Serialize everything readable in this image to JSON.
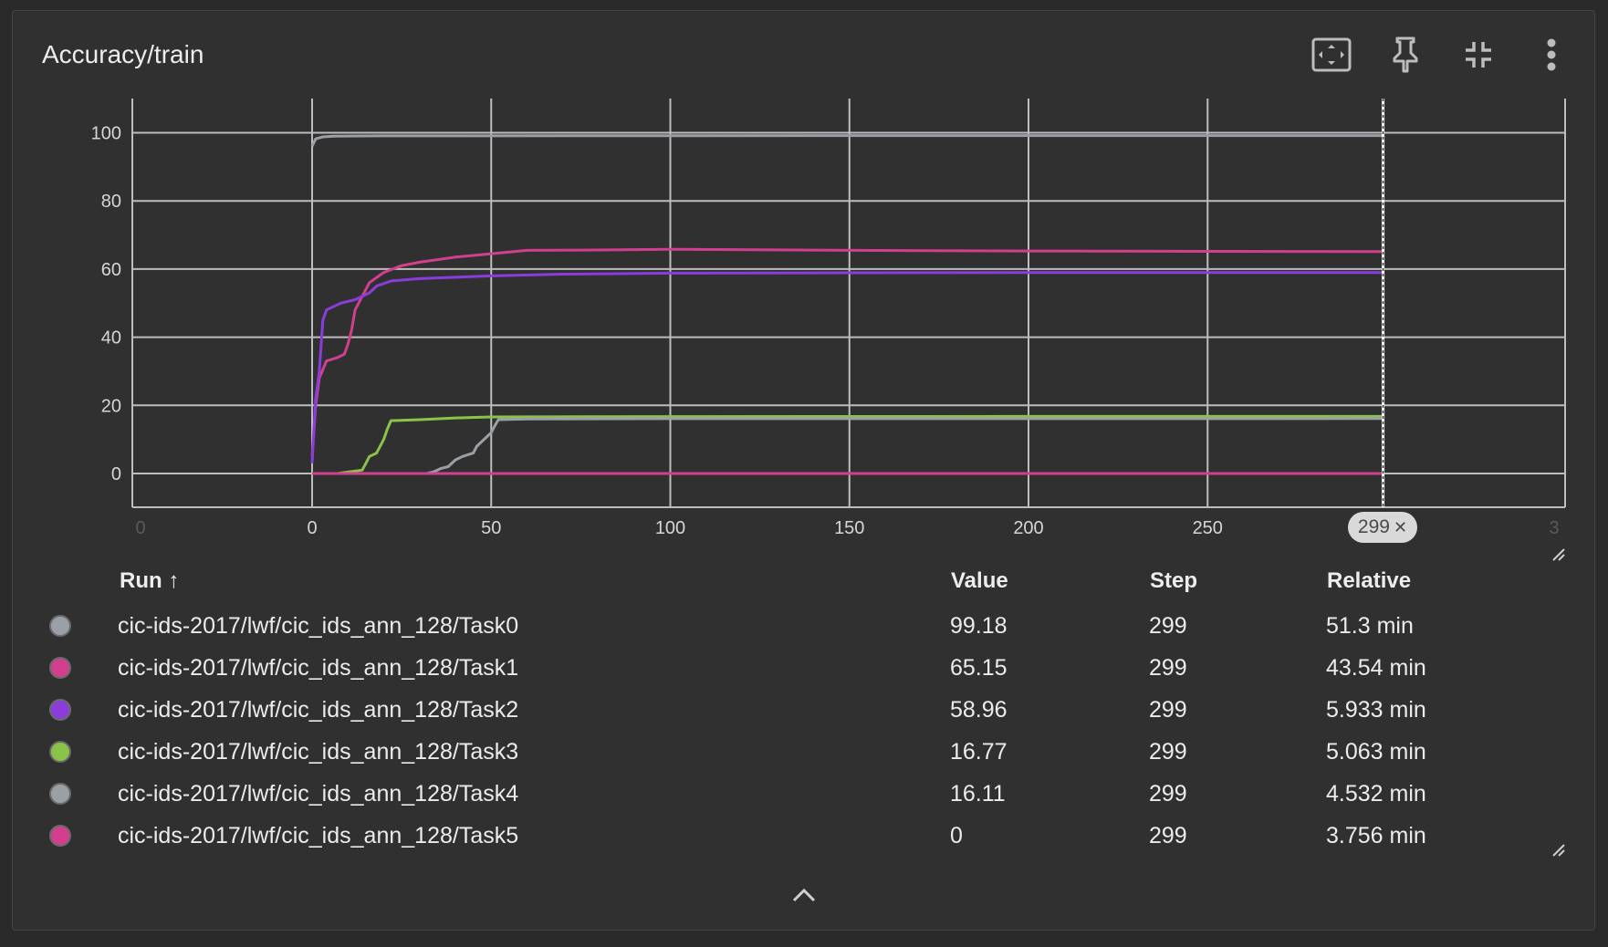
{
  "card": {
    "title": "Accuracy/train"
  },
  "toolbar": {
    "buttons": [
      {
        "name": "fit-domain",
        "icon": "fit-screen-icon"
      },
      {
        "name": "pin",
        "icon": "pin-icon"
      },
      {
        "name": "collapse",
        "icon": "collapse-icon"
      },
      {
        "name": "more",
        "icon": "more-vert-icon"
      }
    ]
  },
  "chart_data": {
    "type": "line",
    "title": "",
    "xlabel": "",
    "ylabel": "",
    "xlim": [
      -50,
      350
    ],
    "ylim": [
      -10,
      110
    ],
    "x_ticks": [
      0,
      50,
      100,
      150,
      200,
      250
    ],
    "x_tick_labels": [
      "0",
      "50",
      "100",
      "150",
      "200",
      "250"
    ],
    "x_edge_labels": [
      "0",
      "3"
    ],
    "y_ticks": [
      0,
      20,
      40,
      60,
      80,
      100
    ],
    "y_tick_labels": [
      "0",
      "20",
      "40",
      "60",
      "80",
      "100"
    ],
    "grid": true,
    "cursor_step": 299,
    "series": [
      {
        "name": "cic-ids-2017/lwf/cic_ids_ann_128/Task0",
        "color": "#9aa0a6",
        "points": [
          [
            0,
            96
          ],
          [
            1,
            98.2
          ],
          [
            3,
            98.8
          ],
          [
            6,
            99
          ],
          [
            20,
            99.1
          ],
          [
            100,
            99.15
          ],
          [
            200,
            99.18
          ],
          [
            299,
            99.18
          ]
        ]
      },
      {
        "name": "cic-ids-2017/lwf/cic_ids_ann_128/Task1",
        "color": "#d33f8f",
        "points": [
          [
            0,
            5
          ],
          [
            1,
            20
          ],
          [
            2,
            28
          ],
          [
            4,
            33
          ],
          [
            7,
            34
          ],
          [
            9,
            35
          ],
          [
            10,
            38
          ],
          [
            11,
            42
          ],
          [
            12,
            48
          ],
          [
            14,
            52
          ],
          [
            16,
            56
          ],
          [
            20,
            59
          ],
          [
            25,
            61
          ],
          [
            30,
            62
          ],
          [
            40,
            63.5
          ],
          [
            50,
            64.5
          ],
          [
            60,
            65.5
          ],
          [
            80,
            65.6
          ],
          [
            100,
            65.8
          ],
          [
            150,
            65.5
          ],
          [
            200,
            65.3
          ],
          [
            250,
            65.2
          ],
          [
            299,
            65.15
          ]
        ]
      },
      {
        "name": "cic-ids-2017/lwf/cic_ids_ann_128/Task2",
        "color": "#8b3ddc",
        "points": [
          [
            0,
            3
          ],
          [
            1,
            22
          ],
          [
            2,
            30
          ],
          [
            3,
            45
          ],
          [
            4,
            48
          ],
          [
            8,
            50
          ],
          [
            12,
            51
          ],
          [
            16,
            53
          ],
          [
            18,
            55
          ],
          [
            22,
            56.5
          ],
          [
            30,
            57.2
          ],
          [
            50,
            58
          ],
          [
            70,
            58.5
          ],
          [
            100,
            58.8
          ],
          [
            150,
            58.9
          ],
          [
            200,
            58.95
          ],
          [
            299,
            58.96
          ]
        ]
      },
      {
        "name": "cic-ids-2017/lwf/cic_ids_ann_128/Task3",
        "color": "#8bc34a",
        "points": [
          [
            7,
            0
          ],
          [
            14,
            1
          ],
          [
            15,
            3
          ],
          [
            16,
            5
          ],
          [
            18,
            6
          ],
          [
            19,
            8
          ],
          [
            20,
            10
          ],
          [
            21,
            13
          ],
          [
            22,
            15.5
          ],
          [
            30,
            15.8
          ],
          [
            40,
            16.3
          ],
          [
            50,
            16.6
          ],
          [
            100,
            16.7
          ],
          [
            200,
            16.77
          ],
          [
            299,
            16.77
          ]
        ]
      },
      {
        "name": "cic-ids-2017/lwf/cic_ids_ann_128/Task4",
        "color": "#9aa0a6",
        "points": [
          [
            32,
            0
          ],
          [
            34,
            0.5
          ],
          [
            36,
            1.5
          ],
          [
            38,
            2
          ],
          [
            40,
            4
          ],
          [
            42,
            5
          ],
          [
            45,
            6
          ],
          [
            46,
            8
          ],
          [
            48,
            10
          ],
          [
            50,
            12
          ],
          [
            51,
            14
          ],
          [
            52,
            15.8
          ],
          [
            60,
            16
          ],
          [
            100,
            16.1
          ],
          [
            200,
            16.1
          ],
          [
            299,
            16.11
          ]
        ]
      },
      {
        "name": "cic-ids-2017/lwf/cic_ids_ann_128/Task5",
        "color": "#d33f8f",
        "points": [
          [
            0,
            0
          ],
          [
            299,
            0
          ]
        ]
      }
    ]
  },
  "step_badge": {
    "label": "299",
    "close": "✕"
  },
  "table": {
    "headers": {
      "run": "Run ↑",
      "value": "Value",
      "step": "Step",
      "relative": "Relative"
    },
    "rows": [
      {
        "color": "#9aa0a6",
        "run": "cic-ids-2017/lwf/cic_ids_ann_128/Task0",
        "value": "99.18",
        "step": "299",
        "relative": "51.3 min"
      },
      {
        "color": "#d33f8f",
        "run": "cic-ids-2017/lwf/cic_ids_ann_128/Task1",
        "value": "65.15",
        "step": "299",
        "relative": "43.54 min"
      },
      {
        "color": "#8b3ddc",
        "run": "cic-ids-2017/lwf/cic_ids_ann_128/Task2",
        "value": "58.96",
        "step": "299",
        "relative": "5.933 min"
      },
      {
        "color": "#8bc34a",
        "run": "cic-ids-2017/lwf/cic_ids_ann_128/Task3",
        "value": "16.77",
        "step": "299",
        "relative": "5.063 min"
      },
      {
        "color": "#9aa0a6",
        "run": "cic-ids-2017/lwf/cic_ids_ann_128/Task4",
        "value": "16.11",
        "step": "299",
        "relative": "4.532 min"
      },
      {
        "color": "#d33f8f",
        "run": "cic-ids-2017/lwf/cic_ids_ann_128/Task5",
        "value": "0",
        "step": "299",
        "relative": "3.756 min"
      }
    ]
  },
  "footer": {
    "expand_icon": "chevron-up-icon"
  }
}
